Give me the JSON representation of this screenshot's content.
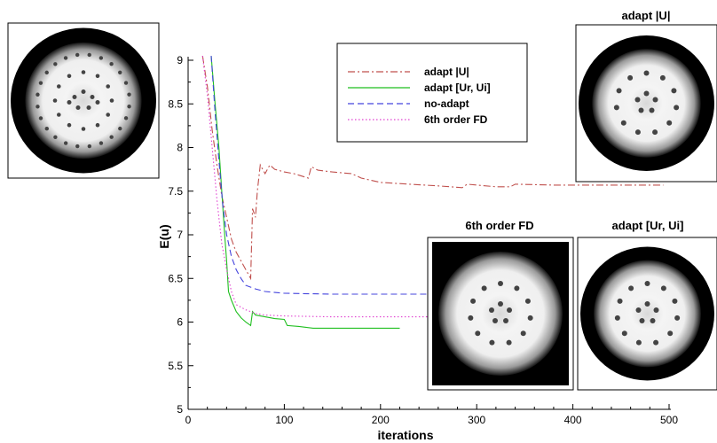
{
  "colors": {
    "background": "#ffffff",
    "axis": "#000000",
    "panel_dark": "#000000",
    "panel_light": "#f2f2f2",
    "dot": "#444444"
  },
  "chart_data": {
    "type": "line",
    "title": "",
    "xlabel": "iterations",
    "ylabel": "E(u)",
    "xlim": [
      0,
      500
    ],
    "ylim": [
      5,
      9
    ],
    "x_ticks": [
      0,
      100,
      200,
      300,
      400,
      500
    ],
    "y_ticks": [
      5,
      5.5,
      6,
      6.5,
      7,
      7.5,
      8,
      8.5,
      9
    ],
    "grid": false,
    "legend_placement": "top-center",
    "series": [
      {
        "name": "adapt |U|",
        "color": "#c0504d",
        "dash": "dashdot",
        "points": [
          [
            15,
            9.05
          ],
          [
            20,
            8.7
          ],
          [
            25,
            8.2
          ],
          [
            30,
            7.8
          ],
          [
            35,
            7.45
          ],
          [
            40,
            7.2
          ],
          [
            45,
            6.95
          ],
          [
            50,
            6.8
          ],
          [
            55,
            6.7
          ],
          [
            60,
            6.6
          ],
          [
            65,
            6.5
          ],
          [
            67,
            7.3
          ],
          [
            70,
            7.2
          ],
          [
            72,
            7.5
          ],
          [
            75,
            7.8
          ],
          [
            80,
            7.7
          ],
          [
            85,
            7.8
          ],
          [
            90,
            7.75
          ],
          [
            100,
            7.72
          ],
          [
            110,
            7.7
          ],
          [
            125,
            7.65
          ],
          [
            128,
            7.78
          ],
          [
            135,
            7.74
          ],
          [
            150,
            7.72
          ],
          [
            170,
            7.7
          ],
          [
            180,
            7.65
          ],
          [
            200,
            7.6
          ],
          [
            230,
            7.58
          ],
          [
            260,
            7.56
          ],
          [
            285,
            7.54
          ],
          [
            290,
            7.58
          ],
          [
            320,
            7.55
          ],
          [
            335,
            7.55
          ],
          [
            340,
            7.58
          ],
          [
            380,
            7.57
          ],
          [
            420,
            7.57
          ],
          [
            460,
            7.57
          ],
          [
            494,
            7.57
          ]
        ]
      },
      {
        "name": "adapt [Ur, Ui]",
        "color": "#1fbf1f",
        "dash": "solid",
        "points": [
          [
            24,
            9.05
          ],
          [
            28,
            8.5
          ],
          [
            32,
            8.0
          ],
          [
            35,
            7.5
          ],
          [
            38,
            7.0
          ],
          [
            40,
            6.7
          ],
          [
            42,
            6.35
          ],
          [
            45,
            6.25
          ],
          [
            50,
            6.12
          ],
          [
            55,
            6.05
          ],
          [
            60,
            6.0
          ],
          [
            65,
            5.96
          ],
          [
            67,
            6.12
          ],
          [
            70,
            6.08
          ],
          [
            80,
            6.06
          ],
          [
            90,
            6.04
          ],
          [
            100,
            6.03
          ],
          [
            103,
            5.96
          ],
          [
            115,
            5.95
          ],
          [
            130,
            5.93
          ],
          [
            160,
            5.93
          ],
          [
            190,
            5.93
          ],
          [
            220,
            5.93
          ]
        ]
      },
      {
        "name": "no-adapt",
        "color": "#4444dd",
        "dash": "dashed",
        "points": [
          [
            24,
            9.05
          ],
          [
            28,
            8.4
          ],
          [
            32,
            7.85
          ],
          [
            36,
            7.35
          ],
          [
            40,
            7.0
          ],
          [
            45,
            6.75
          ],
          [
            50,
            6.6
          ],
          [
            55,
            6.5
          ],
          [
            60,
            6.42
          ],
          [
            70,
            6.38
          ],
          [
            80,
            6.35
          ],
          [
            100,
            6.33
          ],
          [
            150,
            6.32
          ],
          [
            200,
            6.32
          ],
          [
            250,
            6.32
          ],
          [
            300,
            6.32
          ],
          [
            350,
            6.32
          ],
          [
            375,
            6.32
          ]
        ]
      },
      {
        "name": "6th order FD",
        "color": "#e040d0",
        "dash": "dotted",
        "points": [
          [
            15,
            9.05
          ],
          [
            20,
            8.6
          ],
          [
            25,
            8.0
          ],
          [
            30,
            7.4
          ],
          [
            35,
            6.9
          ],
          [
            40,
            6.6
          ],
          [
            45,
            6.35
          ],
          [
            50,
            6.2
          ],
          [
            60,
            6.14
          ],
          [
            70,
            6.1
          ],
          [
            80,
            6.08
          ],
          [
            100,
            6.07
          ],
          [
            150,
            6.06
          ],
          [
            200,
            6.06
          ],
          [
            250,
            6.06
          ],
          [
            285,
            6.06
          ]
        ]
      }
    ]
  },
  "panels": [
    {
      "caption": "",
      "style": "disk",
      "dots": 44
    },
    {
      "caption": "adapt |U|",
      "style": "disk",
      "dots": 16
    },
    {
      "caption": "6th order FD",
      "style": "square",
      "dots": 16
    },
    {
      "caption": "adapt [Ur, Ui]",
      "style": "disk",
      "dots": 16
    }
  ]
}
